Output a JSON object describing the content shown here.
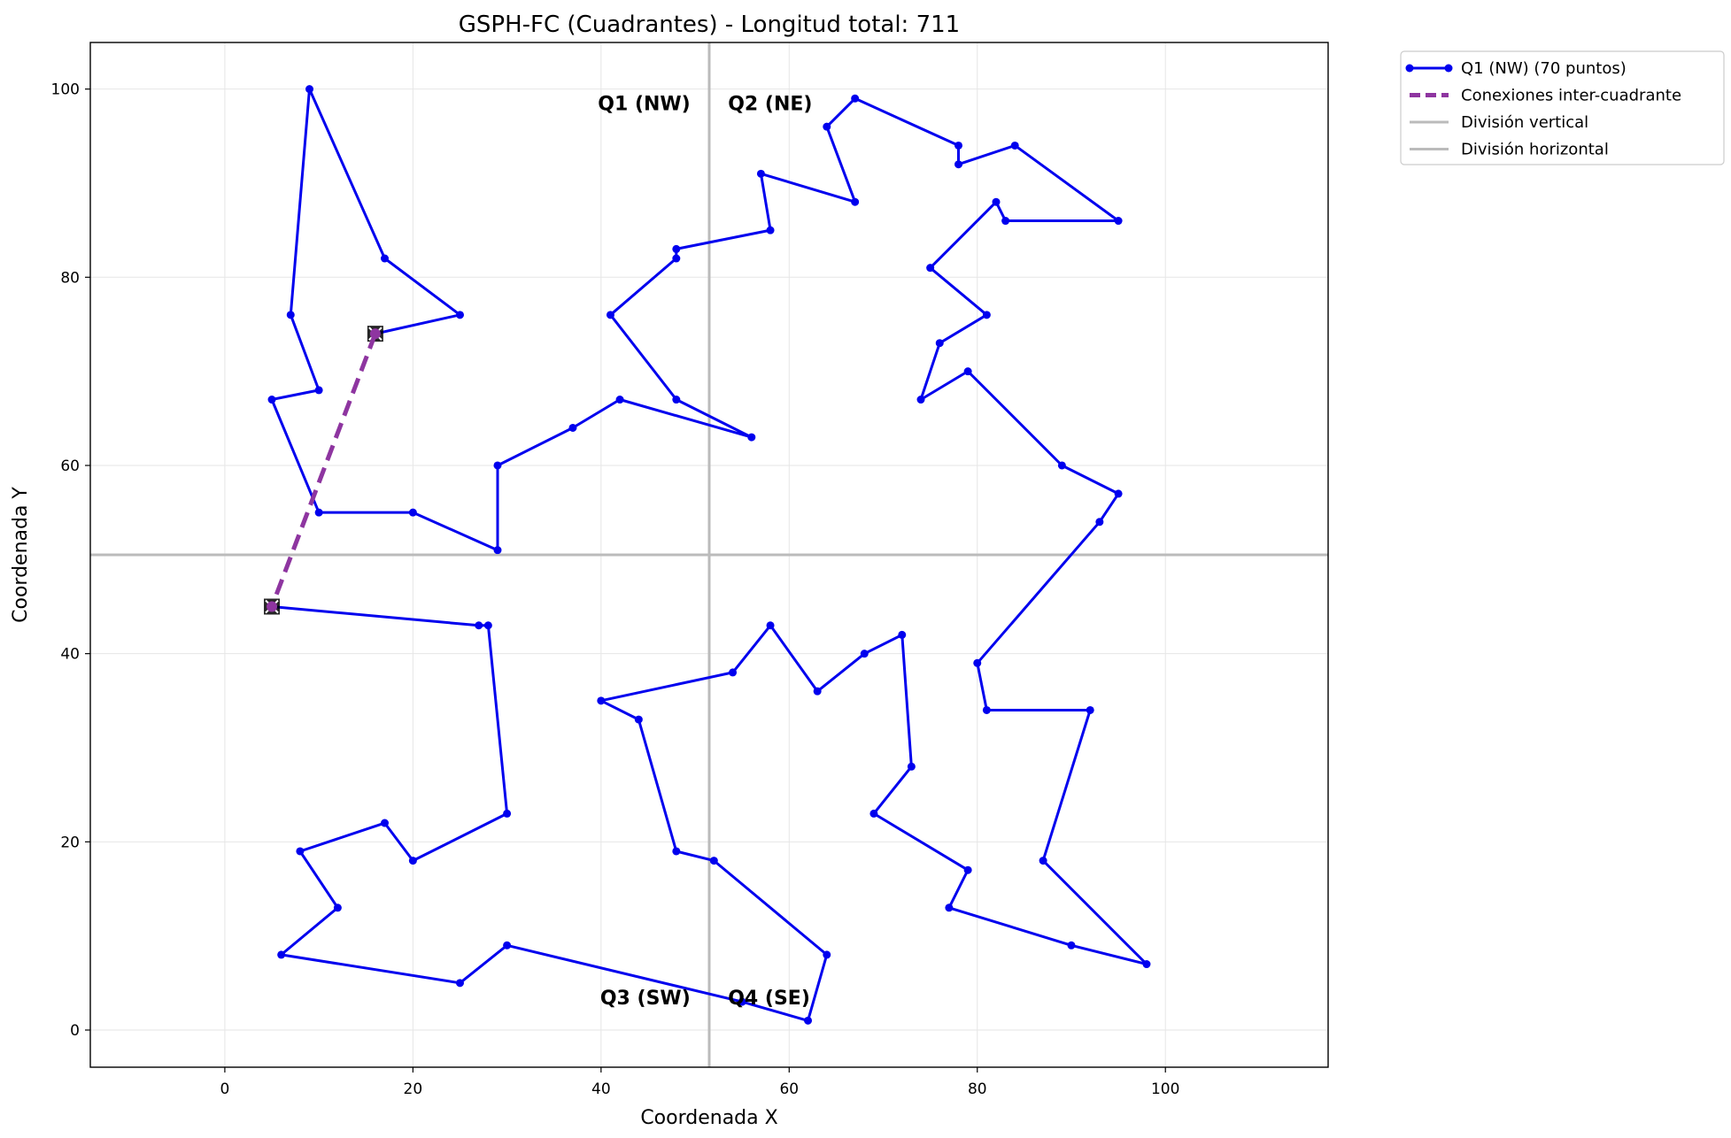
{
  "chart_data": {
    "type": "line",
    "title": "GSPH-FC (Cuadrantes) - Longitud total: 711",
    "xlabel": "Coordenada X",
    "ylabel": "Coordenada Y",
    "xlim": [
      -14.3,
      117.3
    ],
    "ylim": [
      -3.95,
      104.95
    ],
    "xticks": [
      0,
      20,
      40,
      60,
      80,
      100
    ],
    "yticks": [
      0,
      20,
      40,
      60,
      80,
      100
    ],
    "grid": true,
    "legend_position": "outside-top-right",
    "colors": {
      "tour": "#0000ee",
      "inter": "#8e35a0",
      "divider": "#bbbbbb"
    },
    "divisions": {
      "x": 51.5,
      "y": 50.5
    },
    "quadrant_labels": [
      {
        "text": "Q1 (NW)",
        "x": 49.5,
        "y": 98.5,
        "align": "end"
      },
      {
        "text": "Q2 (NE)",
        "x": 53.5,
        "y": 98.5,
        "align": "start"
      },
      {
        "text": "Q3 (SW)",
        "x": 49.5,
        "y": 3.5,
        "align": "end"
      },
      {
        "text": "Q4 (SE)",
        "x": 53.5,
        "y": 3.5,
        "align": "start"
      }
    ],
    "legend": [
      {
        "label": "Q1 (NW) (70 puntos)",
        "style": "tour"
      },
      {
        "label": "Conexiones inter-cuadrante",
        "style": "inter"
      },
      {
        "label": "División vertical",
        "style": "divider"
      },
      {
        "label": "División horizontal",
        "style": "divider"
      }
    ],
    "series": [
      {
        "name": "Q1 (NW) (70 puntos)",
        "x": [
          16,
          25,
          17,
          9,
          7,
          10,
          5,
          10,
          20,
          29,
          29,
          37,
          42,
          56,
          48,
          41,
          48,
          48,
          58,
          57,
          67,
          64,
          67,
          78,
          78,
          84,
          95,
          83,
          82,
          75,
          81,
          76,
          74,
          79,
          89,
          95,
          93,
          80,
          81,
          92,
          87,
          98,
          90,
          77,
          79,
          69,
          73,
          72,
          68,
          63,
          58,
          54,
          40,
          44,
          48,
          52,
          64,
          62,
          55,
          30,
          25,
          6,
          12,
          8,
          17,
          20,
          30,
          28,
          27,
          5
        ],
        "y": [
          74,
          76,
          82,
          100,
          76,
          68,
          67,
          55,
          55,
          51,
          60,
          64,
          67,
          63,
          67,
          76,
          82,
          83,
          85,
          91,
          88,
          96,
          99,
          94,
          92,
          94,
          86,
          86,
          88,
          81,
          76,
          73,
          67,
          70,
          60,
          57,
          54,
          39,
          34,
          34,
          18,
          7,
          9,
          13,
          17,
          23,
          28,
          42,
          40,
          36,
          43,
          38,
          35,
          33,
          19,
          18,
          8,
          1,
          3,
          9,
          5,
          8,
          13,
          19,
          22,
          18,
          23,
          43,
          43,
          45
        ]
      },
      {
        "name": "Conexiones inter-cuadrante",
        "x": [
          16,
          5
        ],
        "y": [
          74,
          45
        ]
      }
    ],
    "markers": [
      {
        "name": "start-marker",
        "x": 16,
        "y": 74
      },
      {
        "name": "end-marker",
        "x": 5,
        "y": 45
      }
    ]
  }
}
